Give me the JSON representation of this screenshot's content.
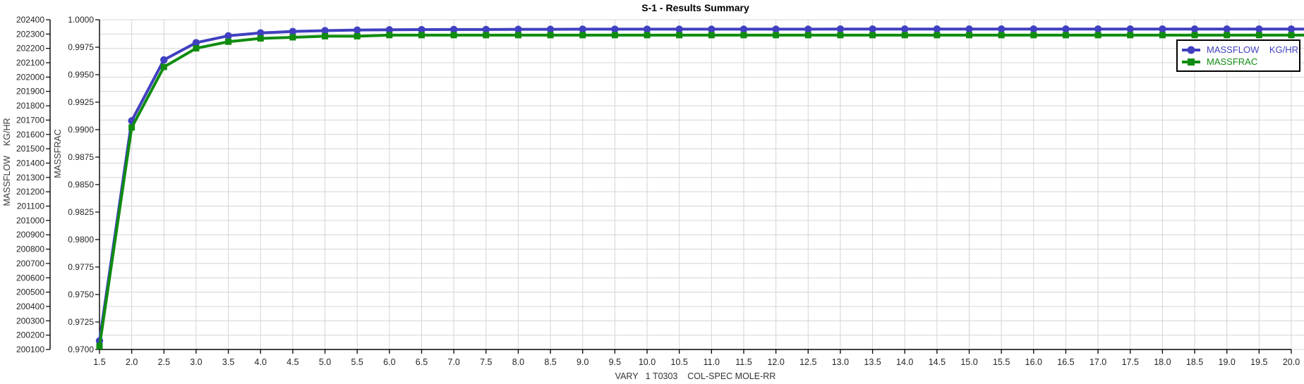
{
  "title": "S-1 - Results Summary",
  "colors": {
    "massflow_series": "#4040c0",
    "massfrac_series": "#108c10",
    "gridline": "#d4d4d4",
    "axis": "#000000",
    "tick_text": "#262626",
    "label_text": "#3c3c3c",
    "title_text": "#000000",
    "legend_border": "#000000",
    "legend_bg": "#ffffff"
  },
  "legend": {
    "items": [
      {
        "label": "MASSFLOW    KG/HR",
        "marker": "circle"
      },
      {
        "label": "MASSFRAC",
        "marker": "square"
      }
    ]
  },
  "chart_data": {
    "type": "line",
    "title": "S-1 - Results Summary",
    "xlabel": "VARY   1 T0303    COL-SPEC MOLE-RR",
    "grid": true,
    "legend_position": "top-right",
    "x_tick_step": 0.5,
    "xlim": [
      1.5,
      20.0
    ],
    "x": [
      1.5,
      2.0,
      2.5,
      3.0,
      3.5,
      4.0,
      4.5,
      5.0,
      5.5,
      6.0,
      6.5,
      7.0,
      7.5,
      8.0,
      8.5,
      9.0,
      9.5,
      10.0,
      10.5,
      11.0,
      11.5,
      12.0,
      12.5,
      13.0,
      13.5,
      14.0,
      14.5,
      15.0,
      15.5,
      16.0,
      16.5,
      17.0,
      17.5,
      18.0,
      18.5,
      19.0,
      19.5,
      20.0
    ],
    "axes": {
      "left1": {
        "label": "MASSFLOW    KG/HR",
        "min": 200100,
        "max": 202400,
        "tick_step": 100,
        "decimals": 0
      },
      "left2": {
        "label": "MASSFRAC",
        "min": 0.97,
        "max": 1.0,
        "tick_step": 0.0025,
        "decimals": 4
      }
    },
    "series": [
      {
        "name": "MASSFLOW    KG/HR",
        "axis": "left1",
        "color": "#4040c0",
        "marker": "circle",
        "values": [
          200160,
          201695,
          202120,
          202240,
          202288,
          202308,
          202318,
          202324,
          202328,
          202330,
          202331,
          202332,
          202332,
          202333,
          202333,
          202334,
          202334,
          202334,
          202334,
          202334,
          202334,
          202334,
          202334,
          202335,
          202335,
          202335,
          202335,
          202335,
          202335,
          202335,
          202335,
          202335,
          202335,
          202335,
          202335,
          202335,
          202335,
          202335
        ]
      },
      {
        "name": "MASSFRAC",
        "axis": "left2",
        "color": "#108c10",
        "marker": "square",
        "values": [
          0.9703,
          0.9902,
          0.9957,
          0.9974,
          0.998,
          0.9983,
          0.9984,
          0.9985,
          0.9985,
          0.9986,
          0.9986,
          0.9986,
          0.9986,
          0.9986,
          0.9986,
          0.9986,
          0.9986,
          0.9986,
          0.9986,
          0.9986,
          0.9986,
          0.9986,
          0.9986,
          0.9986,
          0.9986,
          0.9986,
          0.9986,
          0.9986,
          0.9986,
          0.9986,
          0.9986,
          0.9986,
          0.9986,
          0.9986,
          0.9986,
          0.9986,
          0.9986,
          0.9986
        ]
      }
    ]
  }
}
